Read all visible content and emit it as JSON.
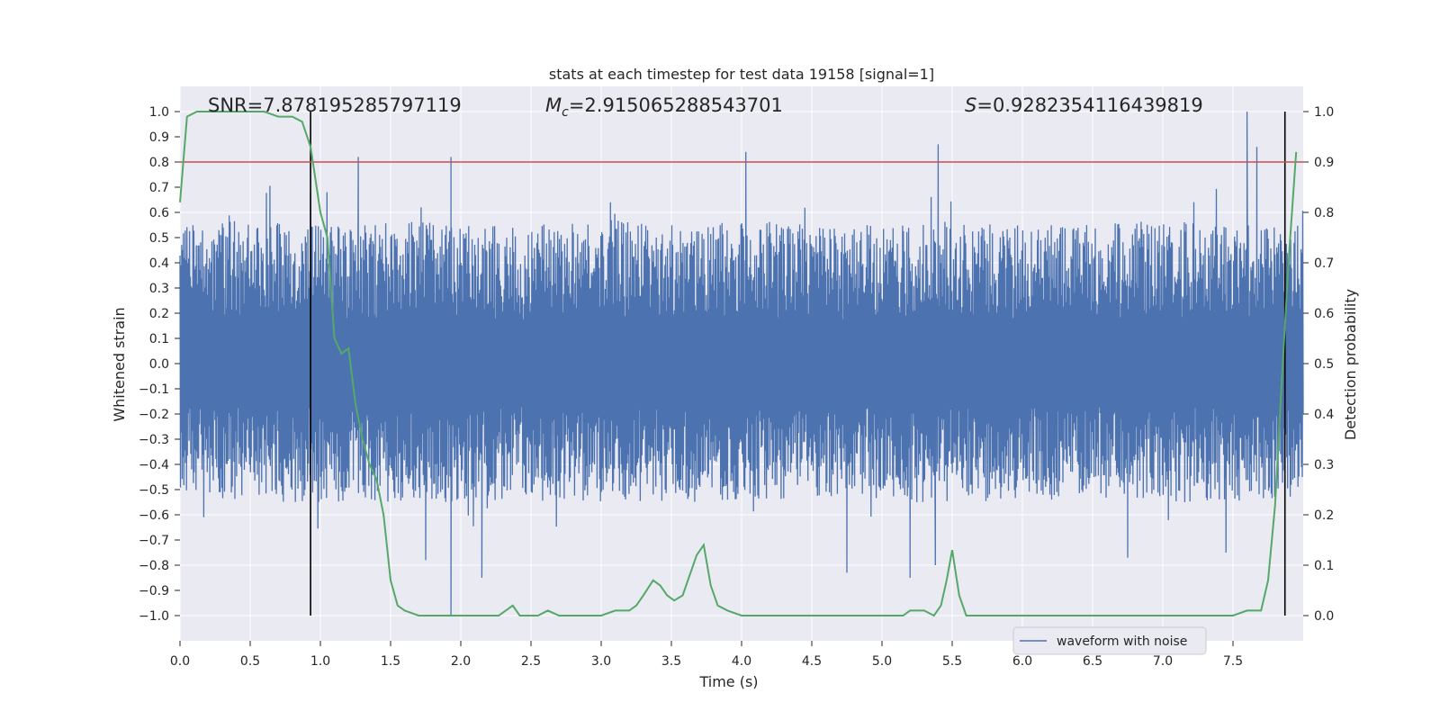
{
  "chart_data": {
    "type": "line",
    "title": "stats at each timestep for test data 19158 [signal=1]",
    "xlabel": "Time (s)",
    "ylabel": "Whitened strain",
    "y2label": "Detection probability",
    "xlim": [
      0.0,
      8.0
    ],
    "ylim": [
      -1.1,
      1.1
    ],
    "y2lim": [
      -0.05,
      1.05
    ],
    "xticks": [
      0.0,
      0.5,
      1.0,
      1.5,
      2.0,
      2.5,
      3.0,
      3.5,
      4.0,
      4.5,
      5.0,
      5.5,
      6.0,
      6.5,
      7.0,
      7.5
    ],
    "yticks": [
      -1.0,
      -0.9,
      -0.8,
      -0.7,
      -0.6,
      -0.5,
      -0.4,
      -0.3,
      -0.2,
      -0.1,
      0.0,
      0.1,
      0.2,
      0.3,
      0.4,
      0.5,
      0.6,
      0.7,
      0.8,
      0.9,
      1.0
    ],
    "y2ticks": [
      0.0,
      0.1,
      0.2,
      0.3,
      0.4,
      0.5,
      0.6,
      0.7,
      0.8,
      0.9,
      1.0
    ],
    "grid": true,
    "legend_position": "lower-right",
    "annotations": {
      "snr": "SNR=7.878195285797119",
      "mc": "=2.915065288543701",
      "s": "=0.9282354116439819"
    },
    "threshold": {
      "y2": 0.9,
      "color": "#c44e52"
    },
    "vertical_markers": [
      0.93,
      7.87
    ],
    "series": [
      {
        "name": "waveform with noise",
        "axis": "left",
        "color": "#4c72b0",
        "envelope": {
          "x": [
            0.0,
            0.5,
            1.0,
            1.5,
            2.0,
            2.5,
            3.0,
            3.5,
            4.0,
            4.5,
            5.0,
            5.5,
            6.0,
            6.5,
            7.0,
            7.5,
            8.0
          ],
          "upper_typical": [
            0.5,
            0.52,
            0.5,
            0.52,
            0.5,
            0.5,
            0.52,
            0.5,
            0.52,
            0.5,
            0.5,
            0.52,
            0.5,
            0.5,
            0.52,
            0.5,
            0.5
          ],
          "lower_typical": [
            -0.48,
            -0.5,
            -0.5,
            -0.5,
            -0.5,
            -0.48,
            -0.5,
            -0.5,
            -0.5,
            -0.48,
            -0.5,
            -0.5,
            -0.5,
            -0.48,
            -0.5,
            -0.5,
            -0.48
          ],
          "peaks": [
            [
              1.27,
              0.82
            ],
            [
              1.93,
              0.82
            ],
            [
              4.03,
              0.84
            ],
            [
              5.4,
              0.87
            ],
            [
              7.6,
              1.0
            ],
            [
              7.67,
              0.86
            ]
          ],
          "troughs": [
            [
              1.93,
              -1.0
            ],
            [
              2.15,
              -0.85
            ],
            [
              1.75,
              -0.78
            ],
            [
              4.75,
              -0.83
            ],
            [
              5.2,
              -0.85
            ],
            [
              5.38,
              -0.8
            ],
            [
              6.75,
              -0.77
            ],
            [
              7.45,
              -0.75
            ]
          ]
        }
      },
      {
        "name": "detection probability",
        "axis": "right",
        "color": "#55a868",
        "x": [
          0.0,
          0.05,
          0.12,
          0.2,
          0.3,
          0.45,
          0.6,
          0.7,
          0.8,
          0.87,
          0.93,
          1.0,
          1.05,
          1.1,
          1.15,
          1.2,
          1.25,
          1.3,
          1.35,
          1.4,
          1.45,
          1.5,
          1.55,
          1.6,
          1.7,
          1.8,
          1.9,
          2.0,
          2.1,
          2.2,
          2.27,
          2.32,
          2.37,
          2.42,
          2.48,
          2.55,
          2.62,
          2.7,
          2.8,
          2.9,
          3.0,
          3.1,
          3.15,
          3.2,
          3.25,
          3.3,
          3.37,
          3.42,
          3.47,
          3.52,
          3.58,
          3.63,
          3.68,
          3.73,
          3.78,
          3.83,
          3.9,
          4.0,
          4.1,
          4.2,
          4.3,
          4.4,
          4.5,
          4.6,
          4.7,
          4.8,
          4.88,
          4.95,
          5.05,
          5.15,
          5.2,
          5.25,
          5.3,
          5.37,
          5.42,
          5.46,
          5.5,
          5.55,
          5.6,
          5.7,
          5.8,
          5.9,
          6.0,
          6.1,
          6.2,
          6.3,
          6.4,
          6.5,
          6.6,
          6.7,
          6.8,
          6.9,
          7.0,
          7.1,
          7.2,
          7.3,
          7.4,
          7.5,
          7.6,
          7.7,
          7.75,
          7.8,
          7.85,
          7.9,
          7.95
        ],
        "y": [
          0.82,
          0.99,
          1.0,
          1.0,
          1.0,
          1.0,
          1.0,
          0.99,
          0.99,
          0.98,
          0.93,
          0.8,
          0.75,
          0.55,
          0.52,
          0.53,
          0.42,
          0.35,
          0.3,
          0.27,
          0.2,
          0.07,
          0.02,
          0.01,
          0.0,
          0.0,
          0.0,
          0.0,
          0.0,
          0.0,
          0.0,
          0.01,
          0.02,
          0.0,
          0.0,
          0.0,
          0.01,
          0.0,
          0.0,
          0.0,
          0.0,
          0.01,
          0.01,
          0.01,
          0.02,
          0.04,
          0.07,
          0.06,
          0.04,
          0.03,
          0.04,
          0.08,
          0.12,
          0.14,
          0.06,
          0.02,
          0.01,
          0.0,
          0.0,
          0.0,
          0.0,
          0.0,
          0.0,
          0.0,
          0.0,
          0.0,
          0.0,
          0.0,
          0.0,
          0.0,
          0.01,
          0.01,
          0.01,
          0.0,
          0.02,
          0.07,
          0.13,
          0.04,
          0.0,
          0.0,
          0.0,
          0.0,
          0.0,
          0.0,
          0.0,
          0.0,
          0.0,
          0.0,
          0.0,
          0.0,
          0.0,
          0.0,
          0.0,
          0.0,
          0.0,
          0.0,
          0.0,
          0.0,
          0.01,
          0.01,
          0.07,
          0.22,
          0.48,
          0.72,
          0.92
        ]
      }
    ]
  }
}
